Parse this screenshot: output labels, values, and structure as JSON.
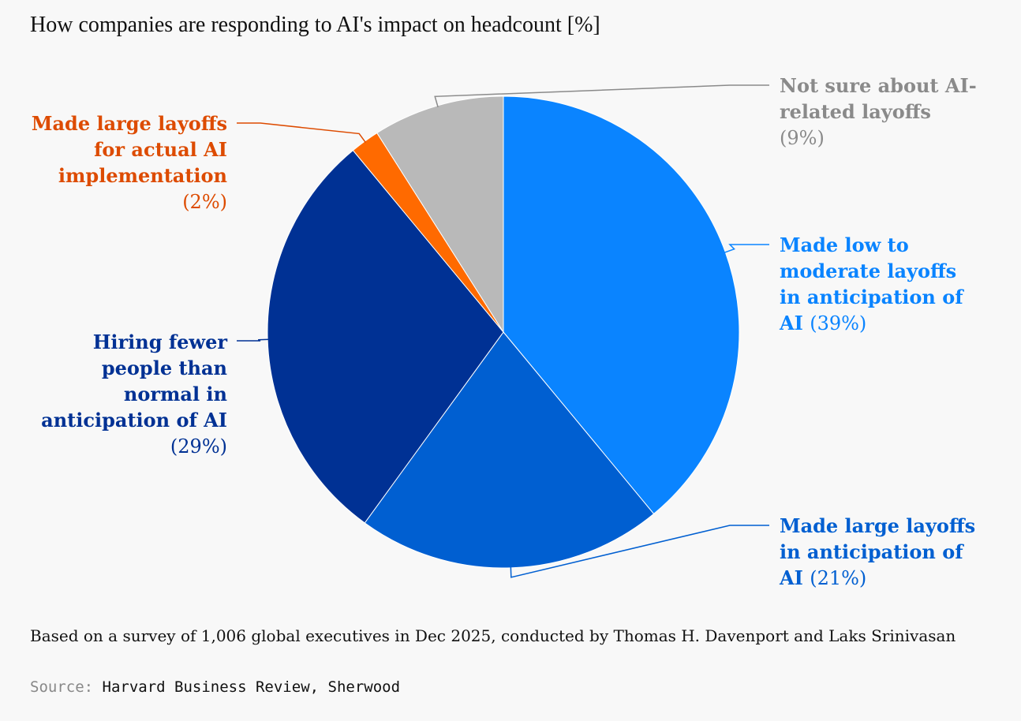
{
  "title": "How companies are responding to AI's impact on headcount [%]",
  "note": "Based on a survey of 1,006 global executives in Dec 2025, conducted by Thomas H. Davenport and Laks Srinivasan",
  "source": {
    "prefix": "Source:",
    "text": "Harvard Business Review, Sherwood"
  },
  "chart_data": {
    "type": "pie",
    "title": "How companies are responding to AI's impact on headcount [%]",
    "unit": "%",
    "slices": [
      {
        "label_lines": [
          "Made low to",
          "moderate layoffs",
          "in anticipation of",
          "AI"
        ],
        "pct_label": "(39%)",
        "value": 39,
        "color": "#0a84ff"
      },
      {
        "label_lines": [
          "Made large layoffs",
          "in anticipation of",
          "AI"
        ],
        "pct_label": "(21%)",
        "value": 21,
        "color": "#005fd1"
      },
      {
        "label_lines": [
          "Hiring fewer",
          "people than",
          "normal in",
          "anticipation of AI"
        ],
        "pct_label": "(29%)",
        "value": 29,
        "color": "#003194"
      },
      {
        "label_lines": [
          "Made large layoffs",
          "for actual AI",
          "implementation"
        ],
        "pct_label": "(2%)",
        "value": 2,
        "color": "#ff6a00",
        "label_color": "#dd4b00"
      },
      {
        "label_lines": [
          "Not sure about AI-",
          "related layoffs"
        ],
        "pct_label": "(9%)",
        "value": 9,
        "color": "#b9b9b9",
        "label_color": "#8a8a8a"
      }
    ]
  }
}
